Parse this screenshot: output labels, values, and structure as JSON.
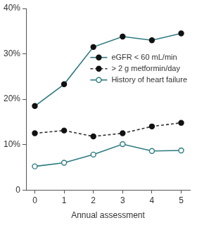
{
  "chart_data": {
    "type": "line",
    "x_label": "Annual assessment",
    "x": [
      0,
      1,
      2,
      3,
      4,
      5
    ],
    "series": [
      {
        "name": "eGFR < 60 mL/min",
        "color": "#2b7a80",
        "marker": "filled",
        "line_style": "solid",
        "values": [
          18.5,
          23.3,
          31.5,
          33.8,
          33.0,
          34.5
        ]
      },
      {
        "name": "> 2 g metformin/day",
        "color": "#333333",
        "marker": "filled",
        "line_style": "dashed",
        "values": [
          12.5,
          13.1,
          11.8,
          12.5,
          14.0,
          14.8
        ]
      },
      {
        "name": "History of heart failure",
        "color": "#2b7a80",
        "marker": "open",
        "line_style": "solid",
        "values": [
          5.2,
          6.0,
          7.8,
          10.1,
          8.6,
          8.7
        ]
      }
    ],
    "xlim": [
      -0.3,
      5.3
    ],
    "xticks": [
      0,
      1,
      2,
      3,
      4,
      5
    ],
    "ylim": [
      0,
      40
    ],
    "yticks": [
      0,
      {
        "value": 10,
        "label": "10%"
      },
      {
        "value": 20,
        "label": "20%"
      },
      {
        "value": 30,
        "label": "30%"
      },
      {
        "value": 40,
        "label": "40%"
      }
    ],
    "grid": false,
    "legend": "right"
  }
}
